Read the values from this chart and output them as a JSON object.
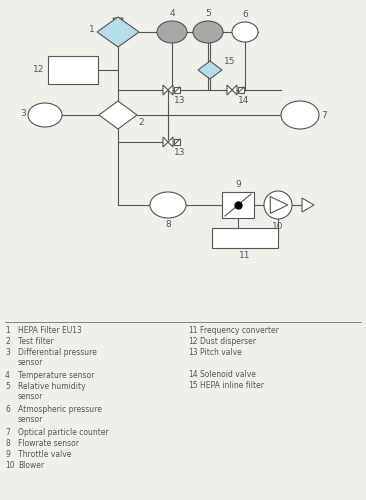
{
  "background_color": "#f0f0eb",
  "line_color": "#555555",
  "light_blue_fill": "#b8dde8",
  "gray_fill": "#a8a8a8",
  "white_fill": "#ffffff",
  "legend_items_left": [
    [
      "1",
      "HEPA Filter EU13"
    ],
    [
      "2",
      "Test filter"
    ],
    [
      "3",
      "Differential pressure\nsensor"
    ],
    [
      "4",
      "Temperature sensor"
    ],
    [
      "5",
      "Relative humidity\nsensor"
    ],
    [
      "6",
      "Atmospheric pressure\nsensor"
    ],
    [
      "7",
      "Optical particle counter"
    ],
    [
      "8",
      "Flowrate sensor"
    ],
    [
      "9",
      "Throttle valve"
    ],
    [
      "10",
      "Blower"
    ]
  ],
  "legend_items_right": [
    [
      "11",
      "Frequency converter"
    ],
    [
      "12",
      "Dust disperser"
    ],
    [
      "13",
      "Pitch valve"
    ],
    [
      "14",
      "Solenoid valve"
    ],
    [
      "15",
      "HEPA inline filter"
    ]
  ]
}
